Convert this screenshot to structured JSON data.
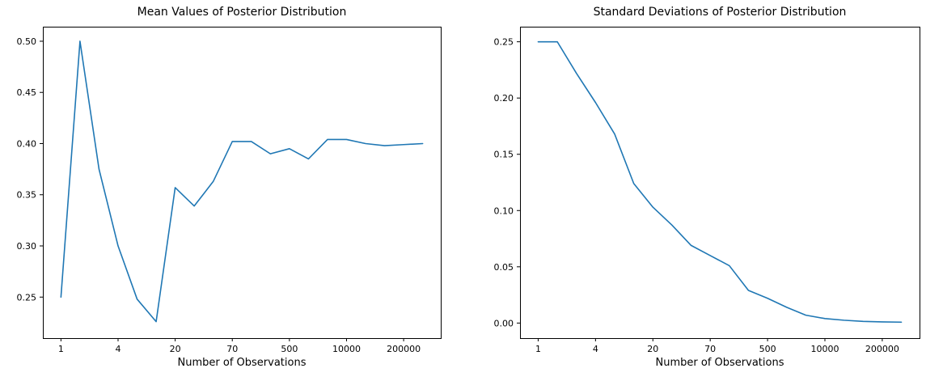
{
  "figure": {
    "background_color": "#ffffff",
    "text_color": "#000000",
    "axes_frame_color": "#000000"
  },
  "chart_data": [
    {
      "type": "line",
      "title": "Mean Values of Posterior Distribution",
      "xlabel": "Number of Observations",
      "ylabel": "",
      "grid": false,
      "legend": null,
      "x_scale": "even-index (custom ticks, log-like observation counts)",
      "xlim": [
        -0.95,
        19.95
      ],
      "ylim": [
        0.2099,
        0.5142
      ],
      "x_tick_indices": [
        0,
        3,
        6,
        9,
        12,
        15,
        18
      ],
      "x_tick_labels": [
        "1",
        "4",
        "20",
        "70",
        "500",
        "10000",
        "200000"
      ],
      "y_tick_values": [
        0.25,
        0.3,
        0.35,
        0.4,
        0.45,
        0.5
      ],
      "y_tick_labels": [
        "0.25",
        "0.30",
        "0.35",
        "0.40",
        "0.45",
        "0.50"
      ],
      "series": [
        {
          "name": "posterior-mean",
          "color": "#1f77b4",
          "values": [
            0.25,
            0.5,
            0.375,
            0.3,
            0.248,
            0.226,
            0.357,
            0.339,
            0.363,
            0.402,
            0.402,
            0.39,
            0.395,
            0.385,
            0.404,
            0.404,
            0.4,
            0.398,
            0.399,
            0.4
          ]
        }
      ]
    },
    {
      "type": "line",
      "title": "Standard Deviations of Posterior Distribution",
      "xlabel": "Number of Observations",
      "ylabel": "",
      "grid": false,
      "legend": null,
      "x_scale": "even-index (custom ticks, log-like observation counts)",
      "xlim": [
        -0.95,
        19.95
      ],
      "ylim": [
        -0.0134,
        0.2634
      ],
      "x_tick_indices": [
        0,
        3,
        6,
        9,
        12,
        15,
        18
      ],
      "x_tick_labels": [
        "1",
        "4",
        "20",
        "70",
        "500",
        "10000",
        "200000"
      ],
      "y_tick_values": [
        0.0,
        0.05,
        0.1,
        0.15,
        0.2,
        0.25
      ],
      "y_tick_labels": [
        "0.00",
        "0.05",
        "0.10",
        "0.15",
        "0.20",
        "0.25"
      ],
      "series": [
        {
          "name": "posterior-std",
          "color": "#1f77b4",
          "values": [
            0.25,
            0.25,
            0.222,
            0.196,
            0.168,
            0.124,
            0.103,
            0.087,
            0.069,
            0.06,
            0.051,
            0.029,
            0.022,
            0.014,
            0.007,
            0.004,
            0.0025,
            0.0015,
            0.001,
            0.0008
          ]
        }
      ]
    }
  ]
}
